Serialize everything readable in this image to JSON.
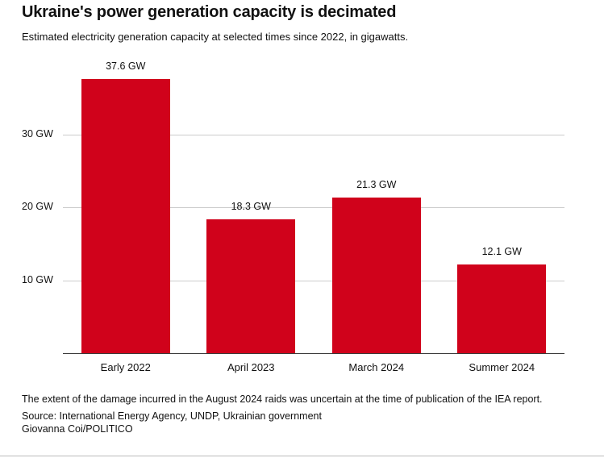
{
  "header": {
    "title": "Ukraine's power generation capacity is decimated",
    "subtitle": "Estimated electricity generation capacity at selected times since 2022, in gigawatts."
  },
  "chart_data": {
    "type": "bar",
    "categories": [
      "Early 2022",
      "April 2023",
      "March 2024",
      "Summer 2024"
    ],
    "values": [
      37.6,
      18.3,
      21.3,
      12.1
    ],
    "value_labels": [
      "37.6 GW",
      "18.3 GW",
      "21.3 GW",
      "12.1 GW"
    ],
    "title": "Ukraine's power generation capacity is decimated",
    "xlabel": "",
    "ylabel": "",
    "ylim": [
      0,
      40
    ],
    "y_ticks": [
      10,
      20,
      30
    ],
    "y_tick_labels": [
      "10 GW",
      "20 GW",
      "30 GW"
    ],
    "grid": true,
    "legend": false,
    "bar_color": "#d0021b",
    "gridline_color": "#cccccc",
    "axis_color": "#3a3a3a"
  },
  "footer": {
    "note": "The extent of the damage incurred in the August 2024 raids was uncertain at the time of publication of the IEA report.",
    "source": "Source: International Energy Agency, UNDP, Ukrainian government",
    "credit": "Giovanna Coi/POLITICO"
  }
}
